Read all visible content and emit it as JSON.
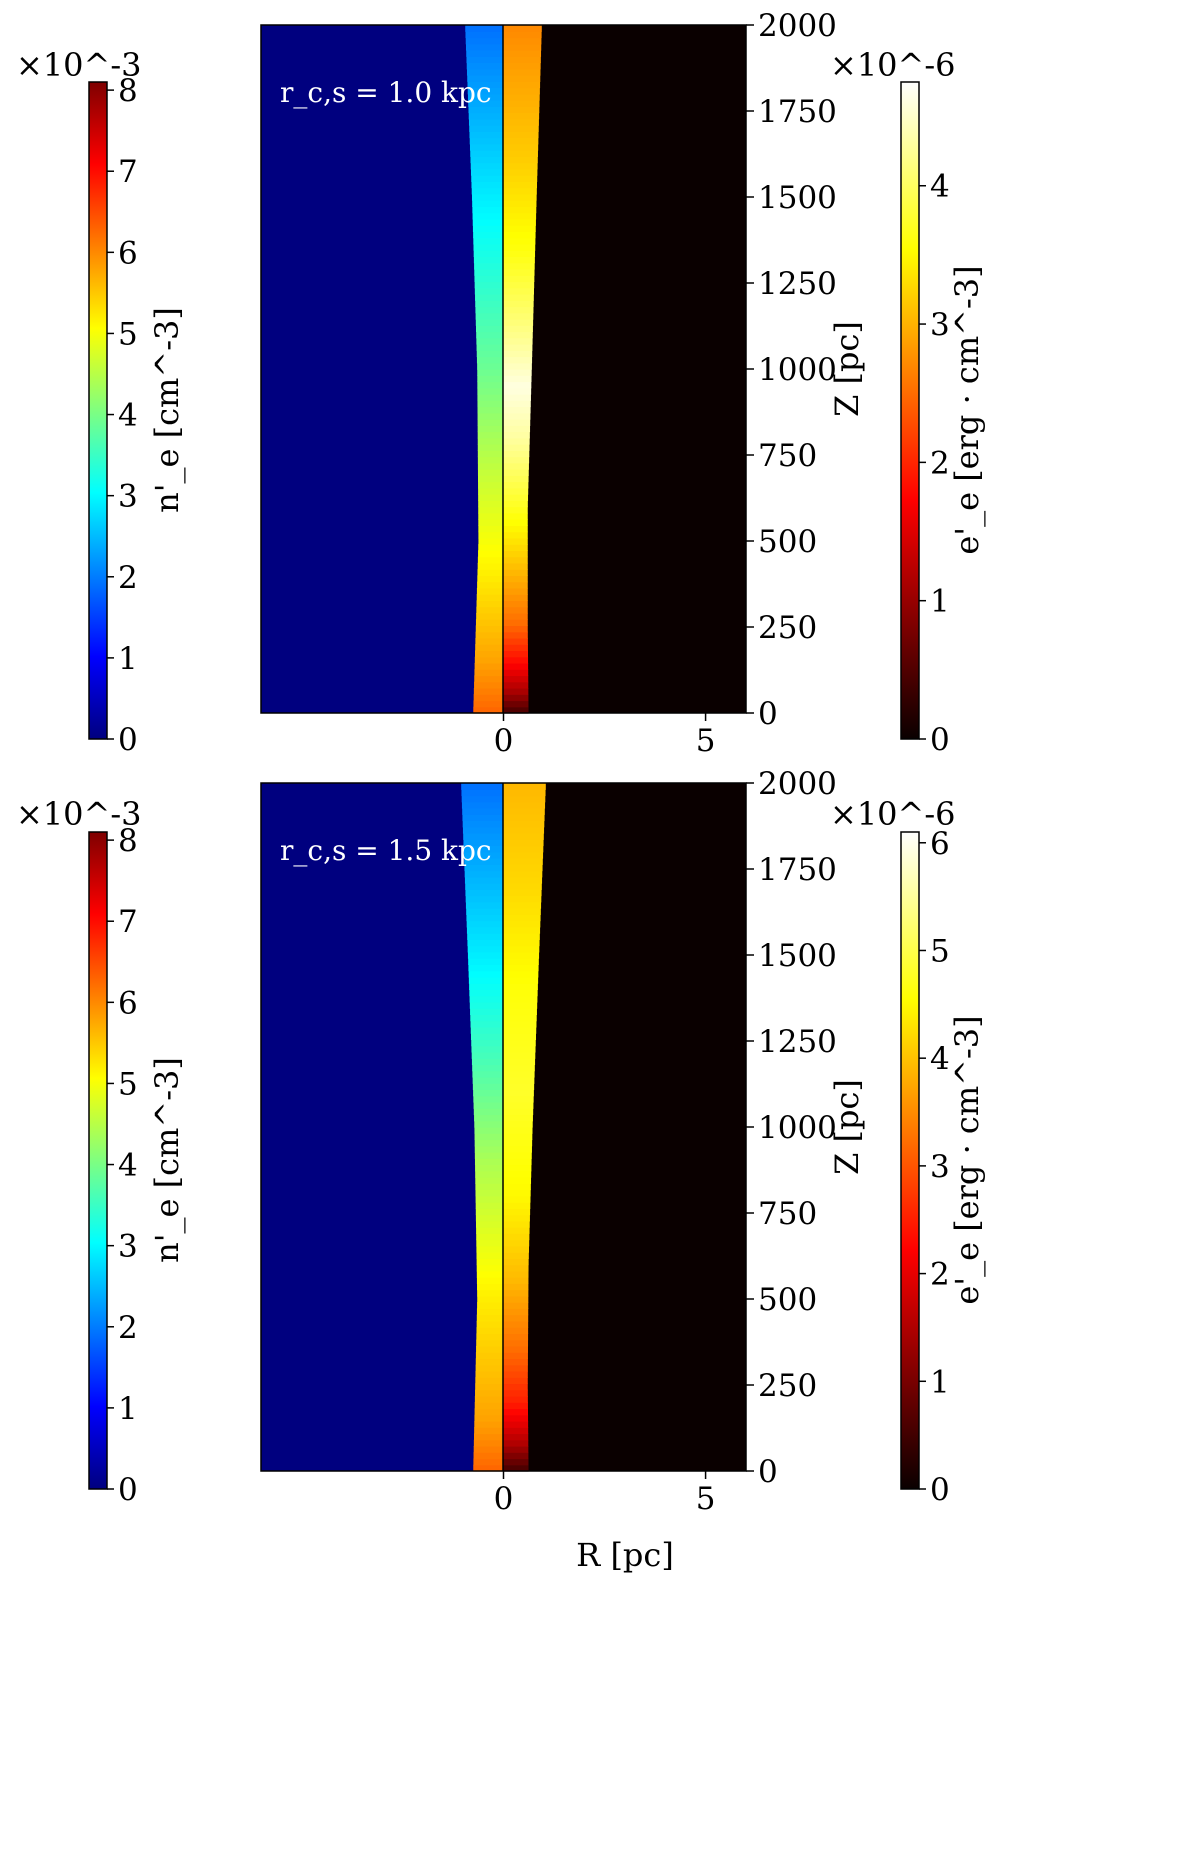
{
  "figure": {
    "x_label": "R [pc]"
  },
  "chart_data": [
    {
      "type": "heatmap",
      "annotation": "r_c,s = 1.0 kpc",
      "xlabel": "R [pc]",
      "ylabel": "Z [pc]",
      "xlim": [
        -6,
        6
      ],
      "ylim": [
        0,
        2000
      ],
      "x_ticks": [
        0,
        5
      ],
      "z_ticks": [
        0,
        250,
        500,
        750,
        1000,
        1250,
        1500,
        1750,
        2000
      ],
      "left_half": {
        "quantity": "n'_e",
        "colorbar_label": "n'_e [cm^-3]",
        "colorbar_multiplier": "×10^-3",
        "colormap": "jet",
        "vmin": 0,
        "vmax": 8.1,
        "ticks": [
          0,
          1,
          2,
          3,
          4,
          5,
          6,
          7,
          8
        ],
        "edge_R": [
          [
            0,
            -0.75
          ],
          [
            500,
            -0.62
          ],
          [
            1000,
            -0.65
          ],
          [
            1500,
            -0.78
          ],
          [
            2000,
            -0.95
          ]
        ],
        "values": [
          [
            0,
            6.3
          ],
          [
            150,
            5.8
          ],
          [
            400,
            5.2
          ],
          [
            700,
            4.6
          ],
          [
            1000,
            3.9
          ],
          [
            1300,
            3.3
          ],
          [
            1600,
            2.7
          ],
          [
            2000,
            1.9
          ]
        ]
      },
      "right_half": {
        "quantity": "e'_e",
        "colorbar_label": "e'_e [erg · cm^-3]",
        "colorbar_multiplier": "×10^-6",
        "colormap": "hot",
        "vmin": 0,
        "vmax": 4.75,
        "ticks": [
          0,
          1,
          2,
          3,
          4
        ],
        "edge_R": [
          [
            0,
            0.62
          ],
          [
            250,
            0.6
          ],
          [
            600,
            0.6
          ],
          [
            1000,
            0.7
          ],
          [
            1500,
            0.82
          ],
          [
            2000,
            0.95
          ]
        ],
        "values": [
          [
            0,
            0.4
          ],
          [
            60,
            1.1
          ],
          [
            150,
            1.8
          ],
          [
            260,
            2.5
          ],
          [
            400,
            3.0
          ],
          [
            600,
            3.7
          ],
          [
            800,
            4.3
          ],
          [
            950,
            4.6
          ],
          [
            1100,
            4.2
          ],
          [
            1350,
            3.6
          ],
          [
            1600,
            3.2
          ],
          [
            1850,
            2.9
          ],
          [
            2000,
            2.7
          ]
        ]
      }
    },
    {
      "type": "heatmap",
      "annotation": "r_c,s = 1.5 kpc",
      "xlabel": "R [pc]",
      "ylabel": "Z [pc]",
      "xlim": [
        -6,
        6
      ],
      "ylim": [
        0,
        2000
      ],
      "x_ticks": [
        0,
        5
      ],
      "z_ticks": [
        0,
        250,
        500,
        750,
        1000,
        1250,
        1500,
        1750,
        2000
      ],
      "left_half": {
        "quantity": "n'_e",
        "colorbar_label": "n'_e [cm^-3]",
        "colorbar_multiplier": "×10^-3",
        "colormap": "jet",
        "vmin": 0,
        "vmax": 8.1,
        "ticks": [
          0,
          1,
          2,
          3,
          4,
          5,
          6,
          7,
          8
        ],
        "edge_R": [
          [
            0,
            -0.75
          ],
          [
            500,
            -0.65
          ],
          [
            1000,
            -0.72
          ],
          [
            1500,
            -0.88
          ],
          [
            2000,
            -1.05
          ]
        ],
        "values": [
          [
            0,
            6.3
          ],
          [
            150,
            5.8
          ],
          [
            500,
            5.2
          ],
          [
            900,
            4.4
          ],
          [
            1200,
            3.6
          ],
          [
            1500,
            2.9
          ],
          [
            1800,
            2.3
          ],
          [
            2000,
            1.9
          ]
        ]
      },
      "right_half": {
        "quantity": "e'_e",
        "colorbar_label": "e'_e [erg · cm^-3]",
        "colorbar_multiplier": "×10^-6",
        "colormap": "hot",
        "vmin": 0,
        "vmax": 6.1,
        "ticks": [
          0,
          1,
          2,
          3,
          4,
          5,
          6
        ],
        "edge_R": [
          [
            0,
            0.62
          ],
          [
            250,
            0.6
          ],
          [
            600,
            0.62
          ],
          [
            1000,
            0.72
          ],
          [
            1500,
            0.88
          ],
          [
            2000,
            1.05
          ]
        ],
        "values": [
          [
            0,
            0.5
          ],
          [
            80,
            1.5
          ],
          [
            200,
            2.5
          ],
          [
            350,
            3.2
          ],
          [
            550,
            3.9
          ],
          [
            800,
            4.5
          ],
          [
            1100,
            4.8
          ],
          [
            1400,
            4.6
          ],
          [
            1700,
            4.2
          ],
          [
            2000,
            3.9
          ]
        ]
      }
    }
  ]
}
